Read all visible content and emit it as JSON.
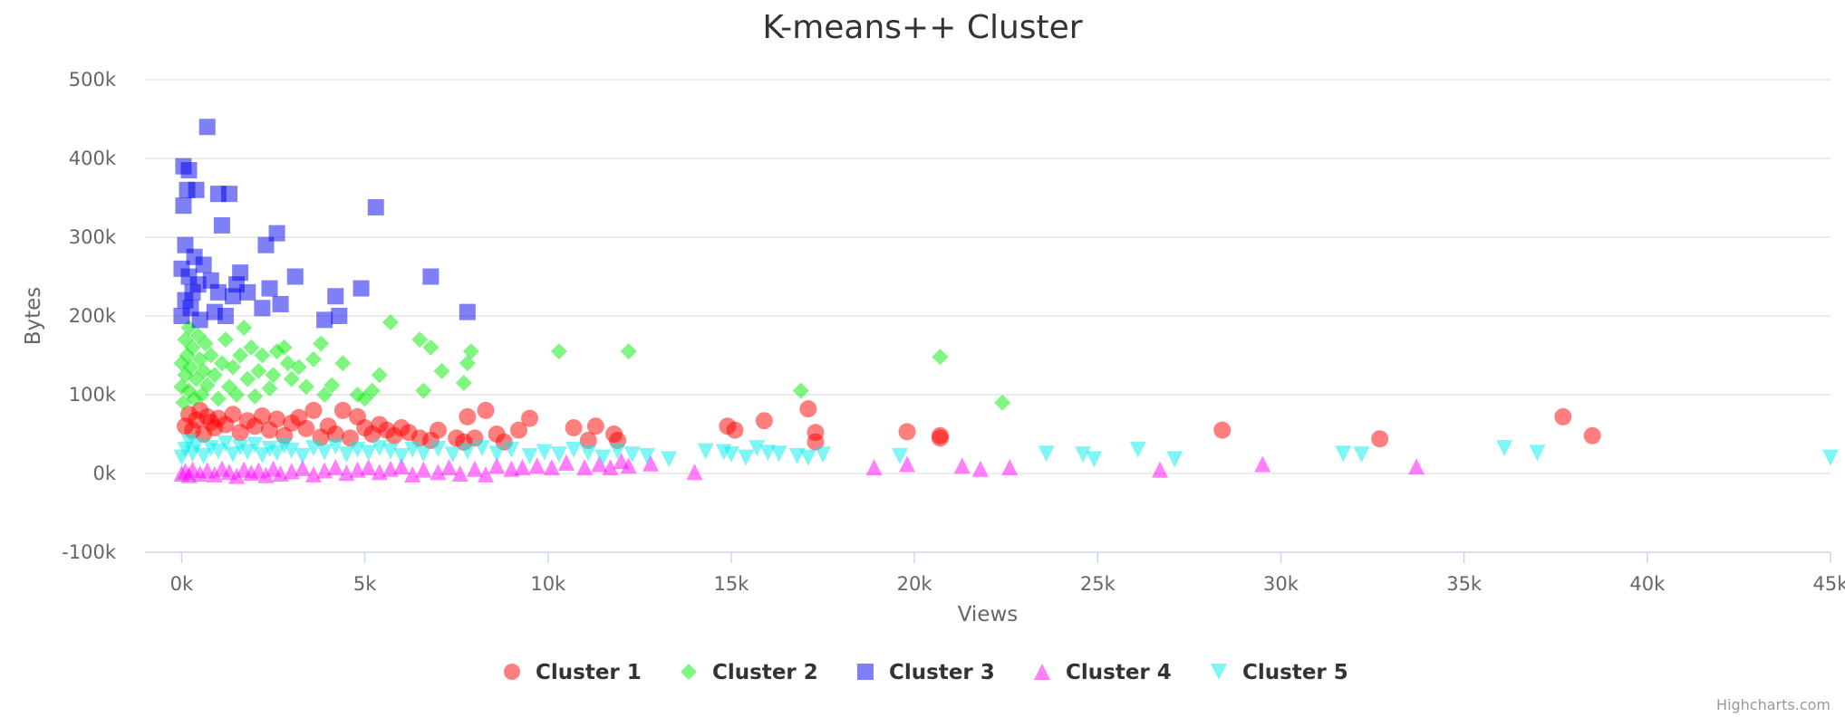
{
  "chart_data": {
    "type": "scatter",
    "title": "K-means++ Cluster",
    "xlabel": "Views",
    "ylabel": "Bytes",
    "xlim": [
      -1000,
      45000
    ],
    "ylim": [
      -100000,
      500000
    ],
    "x_ticks": [
      "0k",
      "5k",
      "10k",
      "15k",
      "20k",
      "25k",
      "30k",
      "35k",
      "40k",
      "45k"
    ],
    "x_tick_values": [
      0,
      5000,
      10000,
      15000,
      20000,
      25000,
      30000,
      35000,
      40000,
      45000
    ],
    "y_ticks": [
      "-100k",
      "0k",
      "100k",
      "200k",
      "300k",
      "400k",
      "500k"
    ],
    "y_tick_values": [
      -100000,
      0,
      100000,
      200000,
      300000,
      400000,
      500000
    ],
    "grid": "horizontal",
    "legend_position": "bottom-center",
    "credits": "Highcharts.com",
    "series": [
      {
        "name": "Cluster 1",
        "marker": "circle",
        "color": "#ff0000",
        "points": [
          [
            100,
            60000
          ],
          [
            200,
            75000
          ],
          [
            300,
            55000
          ],
          [
            400,
            68000
          ],
          [
            500,
            80000
          ],
          [
            600,
            50000
          ],
          [
            700,
            72000
          ],
          [
            800,
            65000
          ],
          [
            900,
            58000
          ],
          [
            1000,
            70000
          ],
          [
            1200,
            62000
          ],
          [
            1400,
            75000
          ],
          [
            1600,
            52000
          ],
          [
            1800,
            67000
          ],
          [
            2000,
            60000
          ],
          [
            2200,
            73000
          ],
          [
            2400,
            55000
          ],
          [
            2600,
            69000
          ],
          [
            2800,
            48000
          ],
          [
            3000,
            64000
          ],
          [
            3200,
            71000
          ],
          [
            3400,
            57000
          ],
          [
            3600,
            80000
          ],
          [
            3800,
            46000
          ],
          [
            4000,
            60000
          ],
          [
            4200,
            50000
          ],
          [
            4400,
            80000
          ],
          [
            4600,
            45000
          ],
          [
            4800,
            72000
          ],
          [
            5000,
            58000
          ],
          [
            5200,
            50000
          ],
          [
            5400,
            62000
          ],
          [
            5600,
            55000
          ],
          [
            5800,
            48000
          ],
          [
            6000,
            58000
          ],
          [
            6200,
            52000
          ],
          [
            6500,
            45000
          ],
          [
            6800,
            42000
          ],
          [
            7000,
            55000
          ],
          [
            7500,
            45000
          ],
          [
            7700,
            40000
          ],
          [
            7800,
            72000
          ],
          [
            8000,
            45000
          ],
          [
            8300,
            80000
          ],
          [
            8600,
            50000
          ],
          [
            8800,
            40000
          ],
          [
            9200,
            55000
          ],
          [
            9500,
            70000
          ],
          [
            10700,
            58000
          ],
          [
            11100,
            42000
          ],
          [
            11300,
            60000
          ],
          [
            11800,
            50000
          ],
          [
            11900,
            42000
          ],
          [
            14900,
            60000
          ],
          [
            15100,
            55000
          ],
          [
            15900,
            67000
          ],
          [
            17100,
            82000
          ],
          [
            17300,
            40000
          ],
          [
            17300,
            52000
          ],
          [
            19800,
            53000
          ],
          [
            20700,
            45000
          ],
          [
            20700,
            48000
          ],
          [
            28400,
            55000
          ],
          [
            32700,
            44000
          ],
          [
            37700,
            72000
          ],
          [
            38500,
            48000
          ]
        ]
      },
      {
        "name": "Cluster 2",
        "marker": "diamond",
        "color": "#00ee00",
        "points": [
          [
            0,
            110000
          ],
          [
            0,
            140000
          ],
          [
            50,
            90000
          ],
          [
            100,
            170000
          ],
          [
            100,
            125000
          ],
          [
            150,
            150000
          ],
          [
            200,
            185000
          ],
          [
            200,
            105000
          ],
          [
            250,
            135000
          ],
          [
            300,
            160000
          ],
          [
            350,
            95000
          ],
          [
            400,
            120000
          ],
          [
            450,
            175000
          ],
          [
            500,
            145000
          ],
          [
            550,
            100000
          ],
          [
            600,
            130000
          ],
          [
            650,
            165000
          ],
          [
            700,
            112000
          ],
          [
            800,
            150000
          ],
          [
            900,
            125000
          ],
          [
            1000,
            95000
          ],
          [
            1100,
            140000
          ],
          [
            1200,
            170000
          ],
          [
            1300,
            110000
          ],
          [
            1400,
            135000
          ],
          [
            1500,
            100000
          ],
          [
            1600,
            150000
          ],
          [
            1700,
            185000
          ],
          [
            1800,
            120000
          ],
          [
            1900,
            160000
          ],
          [
            2000,
            98000
          ],
          [
            2100,
            130000
          ],
          [
            2200,
            150000
          ],
          [
            2400,
            108000
          ],
          [
            2500,
            125000
          ],
          [
            2600,
            155000
          ],
          [
            2800,
            160000
          ],
          [
            2900,
            140000
          ],
          [
            3000,
            120000
          ],
          [
            3200,
            135000
          ],
          [
            3400,
            110000
          ],
          [
            3600,
            145000
          ],
          [
            3800,
            165000
          ],
          [
            3900,
            100000
          ],
          [
            4100,
            112000
          ],
          [
            4400,
            140000
          ],
          [
            4800,
            100000
          ],
          [
            5000,
            95000
          ],
          [
            5200,
            105000
          ],
          [
            5400,
            125000
          ],
          [
            5700,
            192000
          ],
          [
            6500,
            170000
          ],
          [
            6600,
            105000
          ],
          [
            6800,
            160000
          ],
          [
            7100,
            130000
          ],
          [
            7700,
            115000
          ],
          [
            7800,
            140000
          ],
          [
            7900,
            155000
          ],
          [
            10300,
            155000
          ],
          [
            12200,
            155000
          ],
          [
            16900,
            105000
          ],
          [
            20700,
            148000
          ],
          [
            22400,
            90000
          ]
        ]
      },
      {
        "name": "Cluster 3",
        "marker": "square",
        "color": "#0000ee",
        "points": [
          [
            0,
            200000
          ],
          [
            0,
            260000
          ],
          [
            50,
            340000
          ],
          [
            50,
            390000
          ],
          [
            100,
            220000
          ],
          [
            100,
            290000
          ],
          [
            150,
            360000
          ],
          [
            200,
            250000
          ],
          [
            200,
            385000
          ],
          [
            250,
            210000
          ],
          [
            300,
            230000
          ],
          [
            350,
            275000
          ],
          [
            400,
            360000
          ],
          [
            450,
            240000
          ],
          [
            500,
            195000
          ],
          [
            600,
            265000
          ],
          [
            700,
            440000
          ],
          [
            800,
            245000
          ],
          [
            900,
            205000
          ],
          [
            1000,
            355000
          ],
          [
            1000,
            230000
          ],
          [
            1100,
            315000
          ],
          [
            1200,
            200000
          ],
          [
            1300,
            355000
          ],
          [
            1400,
            225000
          ],
          [
            1500,
            240000
          ],
          [
            1600,
            255000
          ],
          [
            1800,
            230000
          ],
          [
            2200,
            210000
          ],
          [
            2300,
            290000
          ],
          [
            2400,
            235000
          ],
          [
            2600,
            305000
          ],
          [
            2700,
            215000
          ],
          [
            3100,
            250000
          ],
          [
            3900,
            195000
          ],
          [
            4200,
            225000
          ],
          [
            4300,
            200000
          ],
          [
            4900,
            235000
          ],
          [
            5300,
            338000
          ],
          [
            6800,
            250000
          ],
          [
            7800,
            205000
          ]
        ]
      },
      {
        "name": "Cluster 4",
        "marker": "triangle",
        "color": "#ff00ff",
        "points": [
          [
            0,
            0
          ],
          [
            100,
            3000
          ],
          [
            200,
            -2000
          ],
          [
            300,
            5000
          ],
          [
            500,
            0
          ],
          [
            700,
            4000
          ],
          [
            900,
            -1000
          ],
          [
            1100,
            6000
          ],
          [
            1300,
            2000
          ],
          [
            1500,
            -3000
          ],
          [
            1700,
            5000
          ],
          [
            1900,
            1000
          ],
          [
            2100,
            4000
          ],
          [
            2300,
            -2000
          ],
          [
            2500,
            6000
          ],
          [
            2700,
            0
          ],
          [
            3000,
            3000
          ],
          [
            3300,
            7000
          ],
          [
            3600,
            -1000
          ],
          [
            3900,
            4000
          ],
          [
            4200,
            8000
          ],
          [
            4500,
            1000
          ],
          [
            4800,
            5000
          ],
          [
            5100,
            8000
          ],
          [
            5400,
            2000
          ],
          [
            5700,
            6000
          ],
          [
            6000,
            9000
          ],
          [
            6300,
            -1000
          ],
          [
            6600,
            5000
          ],
          [
            7000,
            2000
          ],
          [
            7300,
            8000
          ],
          [
            7600,
            0
          ],
          [
            8000,
            6000
          ],
          [
            8300,
            -1000
          ],
          [
            8600,
            10000
          ],
          [
            9000,
            6000
          ],
          [
            9300,
            8000
          ],
          [
            9700,
            10000
          ],
          [
            10100,
            8000
          ],
          [
            10500,
            14000
          ],
          [
            11000,
            8000
          ],
          [
            11400,
            12000
          ],
          [
            11700,
            8000
          ],
          [
            12000,
            16000
          ],
          [
            12200,
            10000
          ],
          [
            12800,
            13000
          ],
          [
            14000,
            2000
          ],
          [
            18900,
            8000
          ],
          [
            19800,
            12000
          ],
          [
            21300,
            10000
          ],
          [
            21800,
            6000
          ],
          [
            22600,
            8000
          ],
          [
            26700,
            5000
          ],
          [
            29500,
            12000
          ],
          [
            33700,
            9000
          ]
        ]
      },
      {
        "name": "Cluster 5",
        "marker": "triangle-down",
        "color": "#00eeee",
        "points": [
          [
            0,
            20000
          ],
          [
            100,
            30000
          ],
          [
            200,
            40000
          ],
          [
            300,
            25000
          ],
          [
            400,
            35000
          ],
          [
            600,
            22000
          ],
          [
            800,
            32000
          ],
          [
            1000,
            28000
          ],
          [
            1200,
            38000
          ],
          [
            1400,
            24000
          ],
          [
            1600,
            33000
          ],
          [
            1800,
            27000
          ],
          [
            2000,
            36000
          ],
          [
            2200,
            23000
          ],
          [
            2400,
            31000
          ],
          [
            2600,
            26000
          ],
          [
            2800,
            35000
          ],
          [
            3000,
            29000
          ],
          [
            3300,
            22000
          ],
          [
            3600,
            32000
          ],
          [
            3900,
            27000
          ],
          [
            4200,
            34000
          ],
          [
            4500,
            24000
          ],
          [
            4800,
            30000
          ],
          [
            5100,
            26000
          ],
          [
            5400,
            32000
          ],
          [
            5700,
            28000
          ],
          [
            6000,
            22000
          ],
          [
            6300,
            30000
          ],
          [
            6600,
            25000
          ],
          [
            7000,
            31000
          ],
          [
            7400,
            24000
          ],
          [
            7800,
            28000
          ],
          [
            8200,
            32000
          ],
          [
            8600,
            25000
          ],
          [
            9000,
            30000
          ],
          [
            9500,
            22000
          ],
          [
            9900,
            27000
          ],
          [
            10300,
            24000
          ],
          [
            10700,
            30000
          ],
          [
            11100,
            26000
          ],
          [
            11500,
            20000
          ],
          [
            11900,
            28000
          ],
          [
            12300,
            24000
          ],
          [
            12700,
            22000
          ],
          [
            13300,
            18000
          ],
          [
            14300,
            28000
          ],
          [
            14800,
            27000
          ],
          [
            15000,
            24000
          ],
          [
            15400,
            20000
          ],
          [
            15700,
            32000
          ],
          [
            16000,
            26000
          ],
          [
            16300,
            25000
          ],
          [
            16800,
            22000
          ],
          [
            17100,
            20000
          ],
          [
            17500,
            24000
          ],
          [
            19600,
            22000
          ],
          [
            23600,
            25000
          ],
          [
            24600,
            24000
          ],
          [
            24900,
            18000
          ],
          [
            26100,
            30000
          ],
          [
            27100,
            18000
          ],
          [
            31700,
            25000
          ],
          [
            32200,
            24000
          ],
          [
            36100,
            32000
          ],
          [
            37000,
            26000
          ],
          [
            45000,
            20000
          ]
        ]
      }
    ]
  }
}
